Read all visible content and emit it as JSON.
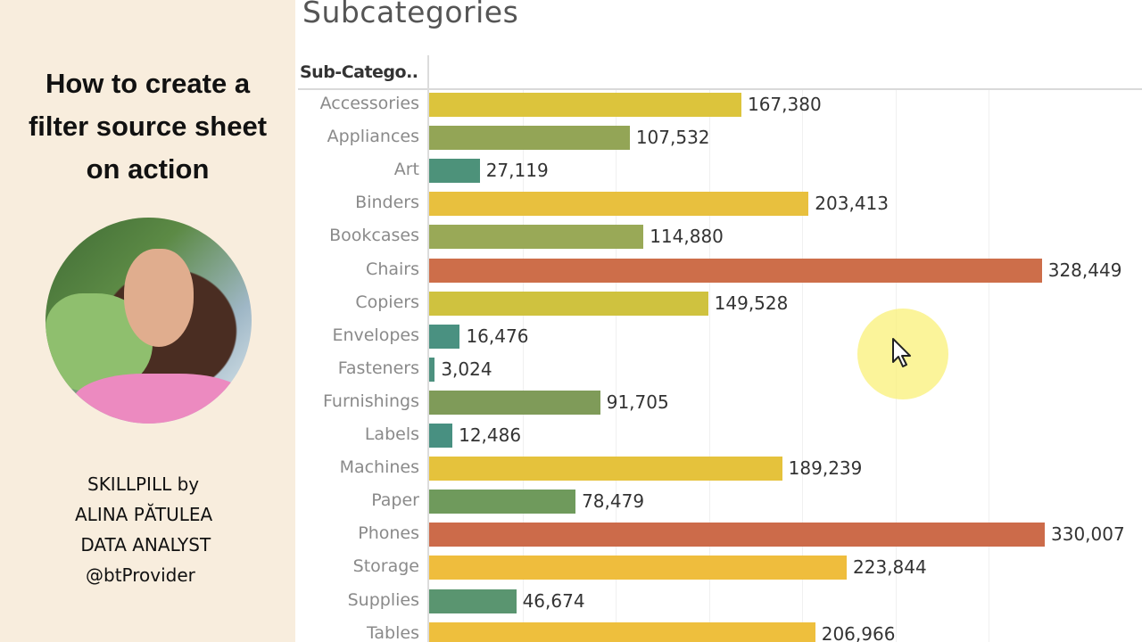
{
  "left_panel": {
    "title_lines": [
      "How to create a",
      "filter source sheet",
      "on action"
    ],
    "credits": [
      "SKILLPILL by",
      "ALINA PĂTULEA",
      " DATA ANALYST",
      "@btProvider"
    ],
    "background_color": "#f8eddd"
  },
  "chart": {
    "title": "Subcategories",
    "column_header": "Sub-Catego.."
  },
  "chart_data": {
    "type": "bar",
    "orientation": "horizontal",
    "title": "Subcategories",
    "xlabel": "",
    "ylabel": "Sub-Category",
    "categories": [
      "Accessories",
      "Appliances",
      "Art",
      "Binders",
      "Bookcases",
      "Chairs",
      "Copiers",
      "Envelopes",
      "Fasteners",
      "Furnishings",
      "Labels",
      "Machines",
      "Paper",
      "Phones",
      "Storage",
      "Supplies",
      "Tables"
    ],
    "values": [
      167380,
      107532,
      27119,
      203413,
      114880,
      328449,
      149528,
      16476,
      3024,
      91705,
      12486,
      189239,
      78479,
      330007,
      223844,
      46674,
      206966
    ],
    "labels": [
      "167,380",
      "107,532",
      "27,119",
      "203,413",
      "114,880",
      "328,449",
      "149,528",
      "16,476",
      "3,024",
      "91,705",
      "12,486",
      "189,239",
      "78,479",
      "330,007",
      "223,844",
      "46,674",
      "206,966"
    ],
    "colors": [
      "#dcc43c",
      "#93a556",
      "#4d927a",
      "#e8c03e",
      "#99a957",
      "#cd6e4a",
      "#cfc23f",
      "#4a9181",
      "#4d917f",
      "#7f9b59",
      "#489081",
      "#e5c23c",
      "#6f9a5c",
      "#cc6b4a",
      "#efbd3d",
      "#5a9570",
      "#eebf3d"
    ],
    "xlim": [
      0,
      330007
    ],
    "grid": true,
    "gridline_step": 50000,
    "legend": "none",
    "color_encoding": "diverging green-yellow-orange by value"
  },
  "cursor": {
    "icon": "arrow-cursor-icon",
    "highlight_color": "#f9ef78"
  }
}
